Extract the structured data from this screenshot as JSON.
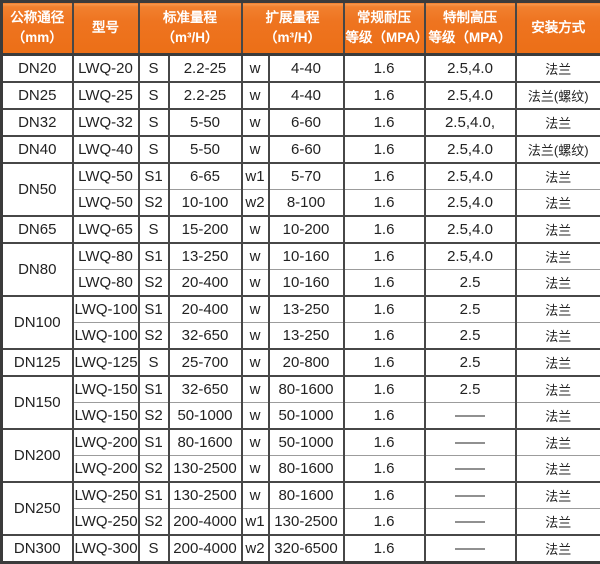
{
  "table": {
    "title_semantic": "LWQ gas turbine flowmeter specification table",
    "headers": [
      {
        "line1": "公称通径",
        "line2": "（mm）",
        "colspan": 1
      },
      {
        "line1": "型号",
        "line2": "",
        "colspan": 1
      },
      {
        "line1": "标准量程",
        "line2": "（m³/H）",
        "colspan": 2
      },
      {
        "line1": "扩展量程",
        "line2": "（m³/H）",
        "colspan": 2
      },
      {
        "line1": "常规耐压",
        "line2": "等级（MPA）",
        "colspan": 1
      },
      {
        "line1": "特制高压",
        "line2": "等级（MPA）",
        "colspan": 1
      },
      {
        "line1": "安装方式",
        "line2": "",
        "colspan": 1
      }
    ],
    "rows": [
      {
        "dn": "DN20",
        "rowspan": 1,
        "group_start": true,
        "model": "LWQ-20",
        "s": "S",
        "s_range": "2.2-25",
        "w": "w",
        "w_range": "4-40",
        "pn": "1.6",
        "hp": "2.5,4.0",
        "install": "法兰"
      },
      {
        "dn": "DN25",
        "rowspan": 1,
        "group_start": true,
        "model": "LWQ-25",
        "s": "S",
        "s_range": "2.2-25",
        "w": "w",
        "w_range": "4-40",
        "pn": "1.6",
        "hp": "2.5,4.0",
        "install": "法兰(螺纹)"
      },
      {
        "dn": "DN32",
        "rowspan": 1,
        "group_start": true,
        "model": "LWQ-32",
        "s": "S",
        "s_range": "5-50",
        "w": "w",
        "w_range": "6-60",
        "pn": "1.6",
        "hp": "2.5,4.0,",
        "install": "法兰"
      },
      {
        "dn": "DN40",
        "rowspan": 1,
        "group_start": true,
        "model": "LWQ-40",
        "s": "S",
        "s_range": "5-50",
        "w": "w",
        "w_range": "6-60",
        "pn": "1.6",
        "hp": "2.5,4.0",
        "install": "法兰(螺纹)"
      },
      {
        "dn": "DN50",
        "rowspan": 2,
        "group_start": true,
        "model": "LWQ-50",
        "s": "S1",
        "s_range": "6-65",
        "w": "w1",
        "w_range": "5-70",
        "pn": "1.6",
        "hp": "2.5,4.0",
        "install": "法兰"
      },
      {
        "group_start": false,
        "model": "LWQ-50",
        "s": "S2",
        "s_range": "10-100",
        "w": "w2",
        "w_range": "8-100",
        "pn": "1.6",
        "hp": "2.5,4.0",
        "install": "法兰"
      },
      {
        "dn": "DN65",
        "rowspan": 1,
        "group_start": true,
        "model": "LWQ-65",
        "s": "S",
        "s_range": "15-200",
        "w": "w",
        "w_range": "10-200",
        "pn": "1.6",
        "hp": "2.5,4.0",
        "install": "法兰"
      },
      {
        "dn": "DN80",
        "rowspan": 2,
        "group_start": true,
        "model": "LWQ-80",
        "s": "S1",
        "s_range": "13-250",
        "w": "w",
        "w_range": "10-160",
        "pn": "1.6",
        "hp": "2.5,4.0",
        "install": "法兰"
      },
      {
        "group_start": false,
        "model": "LWQ-80",
        "s": "S2",
        "s_range": "20-400",
        "w": "w",
        "w_range": "10-160",
        "pn": "1.6",
        "hp": "2.5",
        "install": "法兰"
      },
      {
        "dn": "DN100",
        "rowspan": 2,
        "group_start": true,
        "model": "LWQ-100",
        "s": "S1",
        "s_range": "20-400",
        "w": "w",
        "w_range": "13-250",
        "pn": "1.6",
        "hp": "2.5",
        "install": "法兰"
      },
      {
        "group_start": false,
        "model": "LWQ-100",
        "s": "S2",
        "s_range": "32-650",
        "w": "w",
        "w_range": "13-250",
        "pn": "1.6",
        "hp": "2.5",
        "install": "法兰"
      },
      {
        "dn": "DN125",
        "rowspan": 1,
        "group_start": true,
        "model": "LWQ-125",
        "s": "S",
        "s_range": "25-700",
        "w": "w",
        "w_range": "20-800",
        "pn": "1.6",
        "hp": "2.5",
        "install": "法兰"
      },
      {
        "dn": "DN150",
        "rowspan": 2,
        "group_start": true,
        "model": "LWQ-150",
        "s": "S1",
        "s_range": "32-650",
        "w": "w",
        "w_range": "80-1600",
        "pn": "1.6",
        "hp": "2.5",
        "install": "法兰"
      },
      {
        "group_start": false,
        "model": "LWQ-150",
        "s": "S2",
        "s_range": "50-1000",
        "w": "w",
        "w_range": "50-1000",
        "pn": "1.6",
        "hp": "——",
        "install": "法兰"
      },
      {
        "dn": "DN200",
        "rowspan": 2,
        "group_start": true,
        "model": "LWQ-200",
        "s": "S1",
        "s_range": "80-1600",
        "w": "w",
        "w_range": "50-1000",
        "pn": "1.6",
        "hp": "——",
        "install": "法兰"
      },
      {
        "group_start": false,
        "model": "LWQ-200",
        "s": "S2",
        "s_range": "130-2500",
        "w": "w",
        "w_range": "80-1600",
        "pn": "1.6",
        "hp": "——",
        "install": "法兰"
      },
      {
        "dn": "DN250",
        "rowspan": 2,
        "group_start": true,
        "model": "LWQ-250",
        "s": "S1",
        "s_range": "130-2500",
        "w": "w",
        "w_range": "80-1600",
        "pn": "1.6",
        "hp": "——",
        "install": "法兰"
      },
      {
        "group_start": false,
        "model": "LWQ-250",
        "s": "S2",
        "s_range": "200-4000",
        "w": "w1",
        "w_range": "130-2500",
        "pn": "1.6",
        "hp": "——",
        "install": "法兰"
      },
      {
        "dn": "DN300",
        "rowspan": 1,
        "group_start": true,
        "model": "LWQ-300",
        "s": "S",
        "s_range": "200-4000",
        "w": "w2",
        "w_range": "320-6500",
        "pn": "1.6",
        "hp": "——",
        "install": "法兰"
      }
    ],
    "colors": {
      "header_orange": "#ee7420",
      "header_orange_light": "#f89c52",
      "header_text": "#ffffff",
      "border_dark": "#3b3b3b",
      "border_cell": "#474747",
      "border_inner_light": "#9c9c9c",
      "body_text": "#222222",
      "body_bg": "#ffffff"
    }
  }
}
